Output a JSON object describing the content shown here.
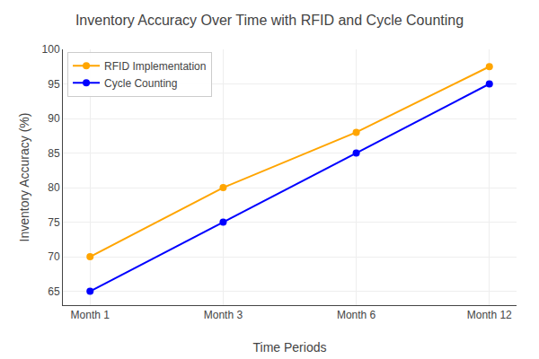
{
  "chart_data": {
    "type": "line",
    "title": "Inventory Accuracy Over Time with RFID and Cycle Counting",
    "xlabel": "Time Periods",
    "ylabel": "Inventory Accuracy (%)",
    "categories": [
      "Month 1",
      "Month 3",
      "Month 6",
      "Month 12"
    ],
    "series": [
      {
        "name": "RFID Implementation",
        "color": "#FFA500",
        "marker": "circle",
        "values": [
          70,
          80,
          88,
          97.5
        ]
      },
      {
        "name": "Cycle Counting",
        "color": "#0000FF",
        "marker": "circle",
        "values": [
          65,
          75,
          85,
          95
        ]
      }
    ],
    "ylim": [
      63,
      100
    ],
    "yticks": [
      65,
      70,
      75,
      80,
      85,
      90,
      95,
      100
    ],
    "grid": true,
    "legend": "upper left"
  }
}
